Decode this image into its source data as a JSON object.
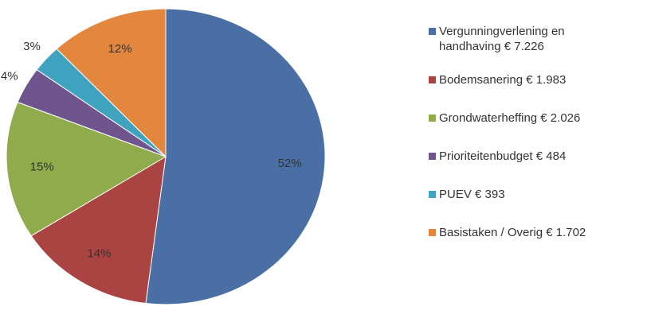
{
  "chart_data": {
    "type": "pie",
    "categories": [
      "Vergunningverlening en handhaving € 7.226",
      "Bodemsanering € 1.983",
      "Grondwaterheffing € 2.026",
      "Prioriteitenbudget € 484",
      "PUEV € 393",
      "Basistaken / Overig € 1.702"
    ],
    "values": [
      52,
      14,
      15,
      4,
      3,
      12
    ],
    "value_labels": [
      "52%",
      "14%",
      "15%",
      "4%",
      "3%",
      "12%"
    ],
    "colors": [
      "#4a6fa5",
      "#a94442",
      "#8fab4b",
      "#6f548e",
      "#3fa3c0",
      "#e2873d"
    ],
    "legend": "right"
  }
}
